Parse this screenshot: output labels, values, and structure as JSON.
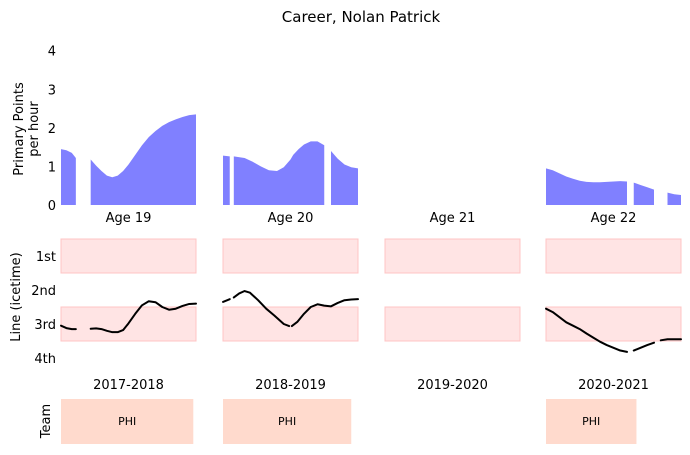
{
  "chart_data": {
    "type": "area",
    "title": "Career, Nolan Patrick",
    "colors": {
      "points_fill": "#8080ff",
      "band_fill": "#ffe4e4",
      "band_stroke": "#ffc4c4",
      "line_stroke": "#000000",
      "team_fill": "#ffdacd"
    },
    "points_panel": {
      "ylabel": "Primary Points\nper hour",
      "ylim": [
        0,
        4.2
      ],
      "yticks": [
        "0",
        "1",
        "2",
        "3",
        "4"
      ],
      "seasons": [
        {
          "age_label": "Age 19",
          "x": [
            0,
            0.04,
            0.08,
            0.11,
            0.22,
            0.26,
            0.3,
            0.34,
            0.38,
            0.42,
            0.46,
            0.5,
            0.55,
            0.6,
            0.65,
            0.7,
            0.75,
            0.8,
            0.85,
            0.9,
            0.95,
            1.0
          ],
          "y": [
            1.45,
            1.42,
            1.35,
            1.22,
            1.18,
            1.02,
            0.88,
            0.76,
            0.72,
            0.76,
            0.88,
            1.05,
            1.3,
            1.55,
            1.76,
            1.92,
            2.05,
            2.15,
            2.22,
            2.28,
            2.33,
            2.35
          ],
          "gaps": [
            [
              0.11,
              0.22
            ]
          ]
        },
        {
          "age_label": "Age 20",
          "x": [
            0,
            0.05,
            0.08,
            0.16,
            0.22,
            0.28,
            0.34,
            0.4,
            0.45,
            0.5,
            0.52,
            0.56,
            0.6,
            0.65,
            0.7,
            0.75,
            0.8,
            0.85,
            0.9,
            0.95,
            1.0
          ],
          "y": [
            1.28,
            1.26,
            1.26,
            1.22,
            1.12,
            1.0,
            0.9,
            0.88,
            0.98,
            1.18,
            1.3,
            1.45,
            1.57,
            1.65,
            1.65,
            1.55,
            1.4,
            1.2,
            1.05,
            0.98,
            0.95
          ],
          "gaps": [
            [
              0.05,
              0.08
            ],
            [
              0.49,
              0.51
            ],
            [
              0.78,
              0.79
            ]
          ]
        },
        {
          "age_label": "Age 21",
          "x": [],
          "y": [],
          "gaps": []
        },
        {
          "age_label": "Age 22",
          "x": [
            0,
            0.05,
            0.1,
            0.15,
            0.2,
            0.25,
            0.3,
            0.35,
            0.4,
            0.45,
            0.5,
            0.55,
            0.6,
            0.65,
            0.7,
            0.75,
            0.8,
            0.85,
            0.9,
            0.95,
            1.0
          ],
          "y": [
            0.95,
            0.9,
            0.82,
            0.74,
            0.68,
            0.63,
            0.6,
            0.59,
            0.59,
            0.6,
            0.61,
            0.62,
            0.61,
            0.58,
            0.52,
            0.46,
            0.4,
            0.36,
            0.32,
            0.28,
            0.26
          ],
          "gaps": [
            [
              0.64,
              0.65
            ],
            [
              0.81,
              0.82
            ],
            [
              0.85,
              0.86
            ]
          ]
        }
      ]
    },
    "line_panel": {
      "ylabel": "Line (icetime)",
      "yticks": [
        "1st",
        "2nd",
        "3rd",
        "4th"
      ],
      "bands": [
        "1st",
        "3rd"
      ],
      "seasons": [
        {
          "x": [
            0,
            0.04,
            0.08,
            0.11,
            0.22,
            0.26,
            0.3,
            0.34,
            0.38,
            0.42,
            0.46,
            0.5,
            0.55,
            0.6,
            0.65,
            0.7,
            0.75,
            0.8,
            0.85,
            0.9,
            0.95,
            1.0
          ],
          "y": [
            3.05,
            3.12,
            3.15,
            3.15,
            3.14,
            3.13,
            3.15,
            3.2,
            3.24,
            3.24,
            3.18,
            2.98,
            2.7,
            2.45,
            2.33,
            2.36,
            2.5,
            2.58,
            2.55,
            2.47,
            2.41,
            2.4
          ],
          "gaps": [
            [
              0.11,
              0.22
            ]
          ]
        },
        {
          "x": [
            0,
            0.05,
            0.08,
            0.12,
            0.16,
            0.2,
            0.26,
            0.32,
            0.38,
            0.45,
            0.49,
            0.51,
            0.55,
            0.6,
            0.65,
            0.7,
            0.75,
            0.8,
            0.85,
            0.9,
            0.95,
            1.0
          ],
          "y": [
            2.35,
            2.27,
            2.22,
            2.1,
            2.03,
            2.08,
            2.3,
            2.55,
            2.75,
            3.0,
            3.06,
            3.06,
            2.94,
            2.7,
            2.5,
            2.42,
            2.46,
            2.48,
            2.38,
            2.3,
            2.28,
            2.27
          ],
          "gaps": [
            [
              0.05,
              0.08
            ],
            [
              0.49,
              0.51
            ]
          ]
        },
        {
          "x": [],
          "y": [],
          "gaps": []
        },
        {
          "x": [
            0,
            0.05,
            0.1,
            0.15,
            0.2,
            0.25,
            0.3,
            0.35,
            0.4,
            0.45,
            0.5,
            0.55,
            0.6,
            0.65,
            0.7,
            0.75,
            0.8,
            0.85,
            0.9,
            0.95,
            1.0
          ],
          "y": [
            2.55,
            2.65,
            2.8,
            2.95,
            3.05,
            3.15,
            3.28,
            3.4,
            3.52,
            3.62,
            3.7,
            3.78,
            3.82,
            3.78,
            3.7,
            3.62,
            3.55,
            3.48,
            3.45,
            3.45,
            3.45
          ],
          "gaps": [
            [
              0.64,
              0.65
            ],
            [
              0.81,
              0.82
            ]
          ]
        }
      ]
    },
    "team_panel": {
      "ylabel": "Team",
      "seasons": [
        {
          "season_label": "2017-2018",
          "team": "PHI",
          "fraction": 0.98
        },
        {
          "season_label": "2018-2019",
          "team": "PHI",
          "fraction": 0.95
        },
        {
          "season_label": "2019-2020",
          "team": "",
          "fraction": 0
        },
        {
          "season_label": "2020-2021",
          "team": "PHI",
          "fraction": 0.67
        }
      ]
    }
  }
}
